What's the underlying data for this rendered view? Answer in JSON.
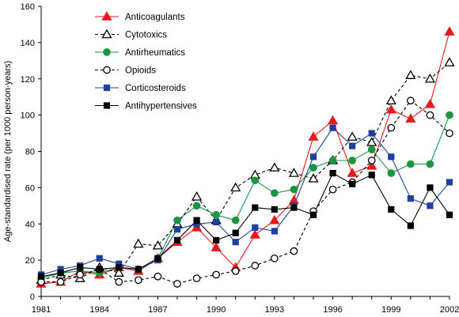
{
  "chart_data": {
    "type": "line",
    "ylabel": "Age-standardised rate (per 1000 person-years)",
    "xlabel": "",
    "title": "",
    "x": [
      1981,
      1982,
      1983,
      1984,
      1985,
      1986,
      1987,
      1988,
      1989,
      1990,
      1991,
      1992,
      1993,
      1994,
      1995,
      1996,
      1997,
      1998,
      1999,
      2000,
      2001,
      2002
    ],
    "x_ticks": [
      1981,
      1984,
      1987,
      1990,
      1993,
      1996,
      1999,
      2002
    ],
    "ylim": [
      0,
      160
    ],
    "y_ticks": [
      0,
      20,
      40,
      60,
      80,
      100,
      120,
      140,
      160
    ],
    "grid": false,
    "legend_position": "top-left",
    "series": [
      {
        "name": "Anticoagulants",
        "color": "#e41a1c",
        "dashed": false,
        "marker": "triangle-filled",
        "values": [
          7,
          8,
          14,
          12,
          16,
          14,
          21,
          30,
          38,
          27,
          16,
          34,
          42,
          53,
          88,
          97,
          68,
          72,
          103,
          98,
          106,
          146
        ]
      },
      {
        "name": "Cytotoxics",
        "color": "#000000",
        "dashed": true,
        "marker": "triangle-open",
        "values": [
          9,
          12,
          10,
          16,
          13,
          29,
          28,
          40,
          55,
          42,
          60,
          67,
          71,
          68,
          65,
          75,
          88,
          85,
          108,
          122,
          120,
          129
        ]
      },
      {
        "name": "Antirheumatics",
        "color": "#1a9641",
        "dashed": false,
        "marker": "circle-filled",
        "values": [
          10,
          13,
          14,
          13,
          16,
          15,
          21,
          42,
          50,
          45,
          42,
          64,
          57,
          59,
          71,
          75,
          75,
          81,
          68,
          73,
          73,
          100
        ]
      },
      {
        "name": "Opioids",
        "color": "#000000",
        "dashed": true,
        "marker": "circle-open",
        "values": [
          8,
          8,
          12,
          15,
          8,
          9,
          11,
          7,
          10,
          12,
          14,
          17,
          21,
          25,
          47,
          59,
          63,
          75,
          93,
          108,
          100,
          90
        ]
      },
      {
        "name": "Corticosteroids",
        "color": "#1f3f9f",
        "dashed": false,
        "marker": "square-filled",
        "values": [
          12,
          15,
          17,
          21,
          18,
          15,
          20,
          37,
          40,
          41,
          30,
          38,
          36,
          50,
          77,
          93,
          83,
          90,
          77,
          54,
          50,
          63
        ]
      },
      {
        "name": "Antihypertensives",
        "color": "#000000",
        "dashed": false,
        "marker": "square-filled",
        "values": [
          11,
          13,
          16,
          15,
          16,
          15,
          21,
          31,
          42,
          31,
          35,
          49,
          48,
          49,
          45,
          68,
          62,
          67,
          48,
          39,
          60,
          45
        ]
      }
    ]
  }
}
